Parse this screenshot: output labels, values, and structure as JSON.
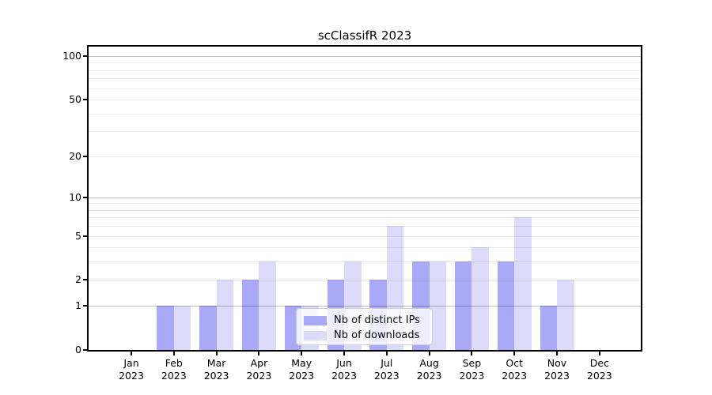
{
  "chart_data": {
    "type": "bar",
    "title": "scClassifR 2023",
    "categories": [
      "Jan 2023",
      "Feb 2023",
      "Mar 2023",
      "Apr 2023",
      "May 2023",
      "Jun 2023",
      "Jul 2023",
      "Aug 2023",
      "Sep 2023",
      "Oct 2023",
      "Nov 2023",
      "Dec 2023"
    ],
    "series": [
      {
        "name": "Nb of distinct IPs",
        "color": "#a9a9f8",
        "values": [
          0,
          1,
          1,
          2,
          1,
          2,
          2,
          3,
          3,
          3,
          1,
          0
        ]
      },
      {
        "name": "Nb of downloads",
        "color": "#dcdcfa",
        "values": [
          0,
          1,
          2,
          3,
          1,
          3,
          6,
          3,
          4,
          7,
          2,
          0
        ]
      }
    ],
    "xlabel": "",
    "ylabel": "",
    "yscale": "log1p",
    "ylim": [
      0,
      116
    ],
    "yticks": [
      0,
      1,
      2,
      5,
      10,
      20,
      50,
      100
    ],
    "major_gridlines": [
      1,
      10,
      100
    ],
    "minor_gridlines": [
      2,
      3,
      4,
      5,
      6,
      7,
      8,
      9,
      20,
      30,
      40,
      50,
      60,
      70,
      80,
      90
    ],
    "grid": true,
    "legend_position": "lower center",
    "colors": {
      "axis": "#000000",
      "major_grid": "#c0c0c0",
      "minor_grid": "#ebebeb",
      "background": "#ffffff"
    }
  }
}
